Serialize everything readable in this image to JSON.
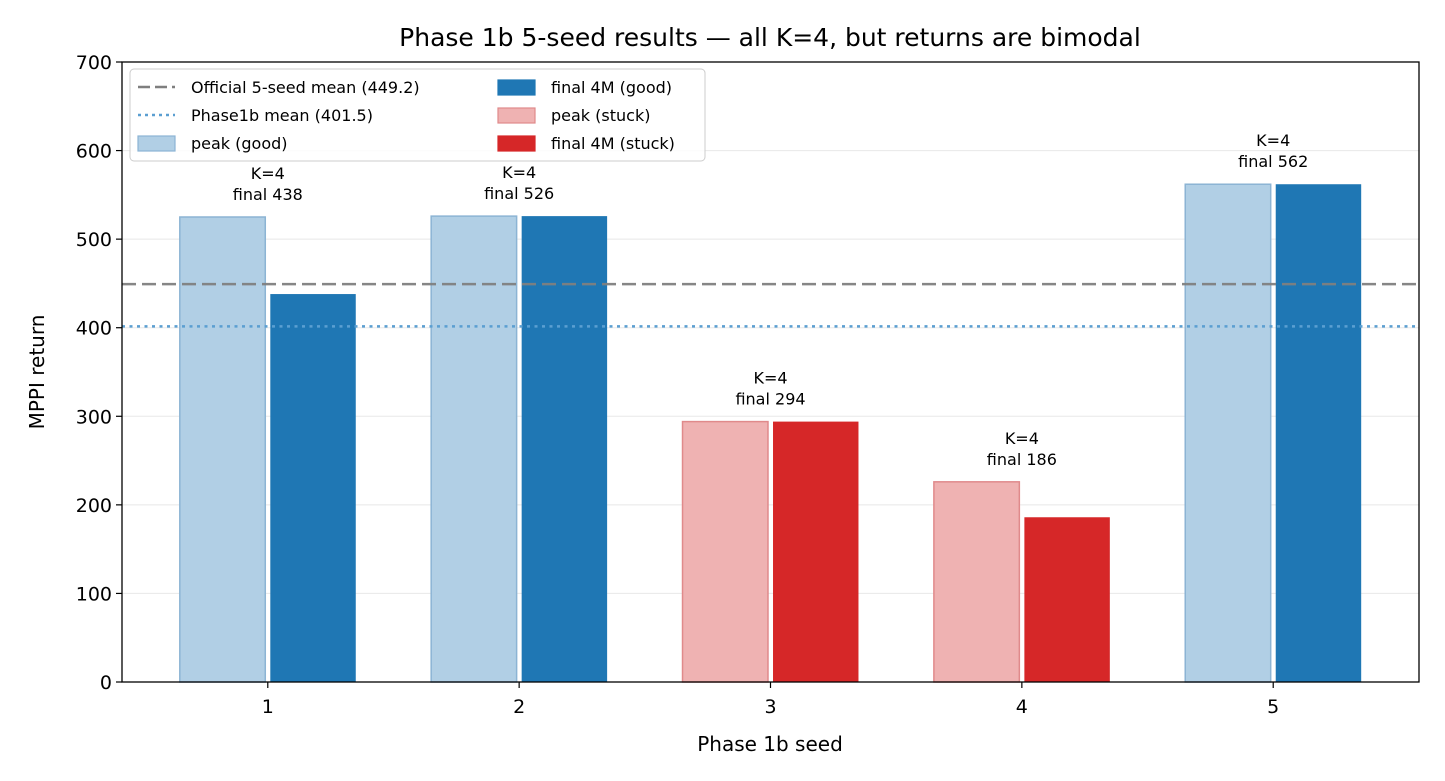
{
  "chart_data": {
    "type": "bar",
    "title": "Phase 1b 5-seed results — all K=4, but returns are bimodal",
    "xlabel": "Phase 1b seed",
    "ylabel": "MPPI return",
    "categories": [
      "1",
      "2",
      "3",
      "4",
      "5"
    ],
    "ylim": [
      0,
      700
    ],
    "yticks": [
      0,
      100,
      200,
      300,
      400,
      500,
      600,
      700
    ],
    "grid": "horizontal",
    "legend_placement": "top-left",
    "legend_entries": [
      {
        "label": "Official 5-seed mean (449.2)",
        "kind": "dashed-line",
        "color": "#7f7f7f"
      },
      {
        "label": "Phase1b mean (401.5)",
        "kind": "dotted-line",
        "color": "#5b9fd1"
      },
      {
        "label": "peak (good)",
        "kind": "patch",
        "color": "#b1cfe5",
        "edge": "#8cb4d4"
      },
      {
        "label": "final 4M (good)",
        "kind": "patch",
        "color": "#1f77b4",
        "edge": "#1f77b4"
      },
      {
        "label": "peak (stuck)",
        "kind": "patch",
        "color": "#efb2b2",
        "edge": "#e08a8b"
      },
      {
        "label": "final 4M (stuck)",
        "kind": "patch",
        "color": "#d62728",
        "edge": "#d62728"
      }
    ],
    "reference_lines": [
      {
        "name": "Official 5-seed mean (449.2)",
        "value": 449.2,
        "style": "dashed",
        "color": "#7f7f7f"
      },
      {
        "name": "Phase1b mean (401.5)",
        "value": 401.5,
        "style": "dotted",
        "color": "#5b9fd1"
      }
    ],
    "series": [
      {
        "name": "peak",
        "values": [
          525,
          526,
          294,
          226,
          562
        ]
      },
      {
        "name": "final 4M",
        "values": [
          438,
          526,
          294,
          186,
          562
        ]
      }
    ],
    "status": [
      "good",
      "good",
      "stuck",
      "stuck",
      "good"
    ],
    "annotations": [
      {
        "line1": "K=4",
        "line2": "final 438"
      },
      {
        "line1": "K=4",
        "line2": "final 526"
      },
      {
        "line1": "K=4",
        "line2": "final 294"
      },
      {
        "line1": "K=4",
        "line2": "final 186"
      },
      {
        "line1": "K=4",
        "line2": "final 562"
      }
    ],
    "colors": {
      "peak_good": "#b1cfe5",
      "peak_good_edge": "#8cb4d4",
      "final_good": "#1f77b4",
      "peak_stuck": "#efb2b2",
      "peak_stuck_edge": "#e08a8b",
      "final_stuck": "#d62728",
      "grid": "#e8e8e8"
    }
  }
}
